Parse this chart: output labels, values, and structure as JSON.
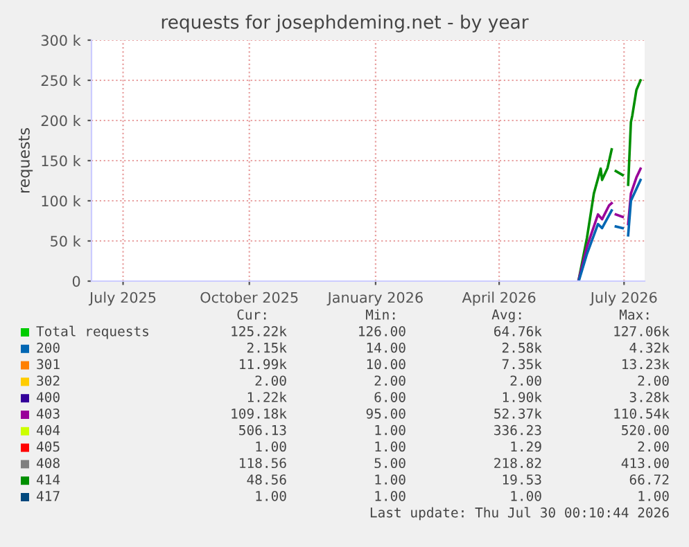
{
  "chart_data": {
    "type": "line",
    "title": "requests for josephdeming.net - by year",
    "ylabel": "requests",
    "series": [
      {
        "color": "#008f00",
        "x": [
          "2026-05-29",
          "2026-06-04",
          "2026-06-09",
          "2026-06-14",
          "2026-06-15",
          "2026-06-19",
          "2026-06-22",
          "2026-06-24",
          "2026-06-25",
          "2026-06-30",
          "2026-07-02",
          "2026-07-04",
          "2026-07-06",
          "2026-07-07",
          "2026-07-10",
          "2026-07-13"
        ],
        "values": [
          2000,
          54000,
          109000,
          140000,
          126000,
          141000,
          164000,
          null,
          137000,
          132000,
          null,
          120000,
          198000,
          206000,
          238000,
          250000
        ]
      },
      {
        "color": "#990099",
        "x": [
          "2026-05-29",
          "2026-06-04",
          "2026-06-12",
          "2026-06-15",
          "2026-06-20",
          "2026-06-22",
          "2026-06-24",
          "2026-06-25",
          "2026-06-30",
          "2026-07-02",
          "2026-07-04",
          "2026-07-06",
          "2026-07-10",
          "2026-07-13"
        ],
        "values": [
          2000,
          43000,
          83000,
          77000,
          94000,
          97000,
          null,
          83000,
          80000,
          null,
          71000,
          109000,
          129000,
          140000
        ]
      },
      {
        "color": "#0066b3",
        "x": [
          "2026-05-29",
          "2026-06-04",
          "2026-06-12",
          "2026-06-15",
          "2026-06-22",
          "2026-06-24",
          "2026-06-25",
          "2026-06-30",
          "2026-07-02",
          "2026-07-04",
          "2026-07-06",
          "2026-07-13"
        ],
        "values": [
          0,
          34000,
          71000,
          66000,
          88000,
          null,
          68000,
          66000,
          null,
          57000,
          100000,
          126000
        ]
      }
    ],
    "xlim": [
      "2025-06-08",
      "2026-07-16"
    ],
    "xticks": [
      {
        "value": "2025-07-01",
        "label": "July 2025"
      },
      {
        "value": "2025-10-01",
        "label": "October 2025"
      },
      {
        "value": "2026-01-01",
        "label": "January 2026"
      },
      {
        "value": "2026-04-01",
        "label": "April 2026"
      },
      {
        "value": "2026-07-01",
        "label": "July 2026"
      }
    ],
    "ylim": [
      0,
      300000
    ],
    "yticks": [
      {
        "value": 0,
        "label": "0"
      },
      {
        "value": 50000,
        "label": "50 k"
      },
      {
        "value": 100000,
        "label": "100 k"
      },
      {
        "value": 150000,
        "label": "150 k"
      },
      {
        "value": 200000,
        "label": "200 k"
      },
      {
        "value": 250000,
        "label": "250 k"
      },
      {
        "value": 300000,
        "label": "300 k"
      }
    ],
    "grid": true,
    "legend": false,
    "colors": [
      "#00cc00",
      "#0066b3",
      "#ff8000",
      "#ffcc00",
      "#330099",
      "#990099",
      "#ccff00",
      "#ff0000",
      "#808080",
      "#008f00",
      "#00487d"
    ],
    "annotations": [
      "Cur:",
      "Min:",
      "Avg:",
      "Max:",
      "Total requests",
      "125.22k",
      "126.00",
      "64.76k",
      "127.06k",
      "200",
      "2.15k",
      "14.00",
      "2.58k",
      "4.32k",
      "301",
      "11.99k",
      "10.00",
      "7.35k",
      "13.23k",
      "302",
      "2.00",
      "2.00",
      "2.00",
      "2.00",
      "400",
      "1.22k",
      "6.00",
      "1.90k",
      "3.28k",
      "403",
      "109.18k",
      "95.00",
      "52.37k",
      "110.54k",
      "404",
      "506.13",
      "1.00",
      "336.23",
      "520.00",
      "405",
      "1.00",
      "1.00",
      "1.29",
      "2.00",
      "408",
      "118.56",
      "5.00",
      "218.82",
      "413.00",
      "414",
      "48.56",
      "1.00",
      "19.53",
      "66.72",
      "417",
      "1.00",
      "1.00",
      "1.00",
      "1.00",
      "Last update: Thu Jul 30 00:10:44 2026"
    ]
  }
}
